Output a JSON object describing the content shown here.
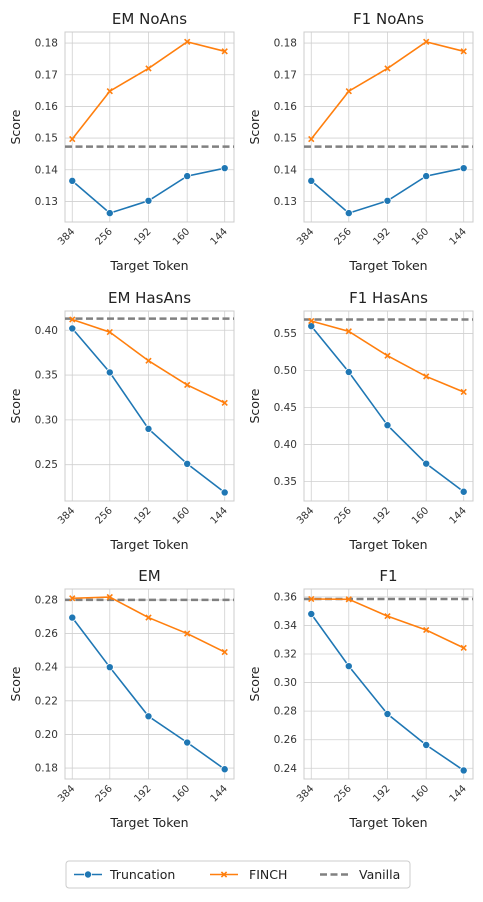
{
  "chart_data": [
    {
      "type": "line",
      "title": "EM NoAns",
      "xlabel": "Target Token",
      "ylabel": "Score",
      "categories": [
        "384",
        "256",
        "192",
        "160",
        "144"
      ],
      "ylim": [
        0.1235,
        0.1835
      ],
      "yticks": [
        "0.13",
        "0.14",
        "0.15",
        "0.16",
        "0.17",
        "0.18"
      ],
      "ytick_values": [
        0.13,
        0.14,
        0.15,
        0.16,
        0.17,
        0.18
      ],
      "series": [
        {
          "name": "Truncation",
          "values": [
            0.1365,
            0.1263,
            0.1302,
            0.138,
            0.1405
          ]
        },
        {
          "name": "FINCH",
          "values": [
            0.1497,
            0.1648,
            0.172,
            0.1804,
            0.1774
          ]
        }
      ],
      "vanilla": 0.1473
    },
    {
      "type": "line",
      "title": "F1 NoAns",
      "xlabel": "Target Token",
      "ylabel": "Score",
      "categories": [
        "384",
        "256",
        "192",
        "160",
        "144"
      ],
      "ylim": [
        0.1235,
        0.1835
      ],
      "yticks": [
        "0.13",
        "0.14",
        "0.15",
        "0.16",
        "0.17",
        "0.18"
      ],
      "ytick_values": [
        0.13,
        0.14,
        0.15,
        0.16,
        0.17,
        0.18
      ],
      "series": [
        {
          "name": "Truncation",
          "values": [
            0.1365,
            0.1263,
            0.1302,
            0.138,
            0.1405
          ]
        },
        {
          "name": "FINCH",
          "values": [
            0.1497,
            0.1648,
            0.172,
            0.1804,
            0.1774
          ]
        }
      ],
      "vanilla": 0.1473
    },
    {
      "type": "line",
      "title": "EM HasAns",
      "xlabel": "Target Token",
      "ylabel": "Score",
      "categories": [
        "384",
        "256",
        "192",
        "160",
        "144"
      ],
      "ylim": [
        0.2095,
        0.4215
      ],
      "yticks": [
        "0.25",
        "0.30",
        "0.35",
        "0.40"
      ],
      "ytick_values": [
        0.25,
        0.3,
        0.35,
        0.4
      ],
      "series": [
        {
          "name": "Truncation",
          "values": [
            0.402,
            0.353,
            0.29,
            0.251,
            0.219
          ]
        },
        {
          "name": "FINCH",
          "values": [
            0.412,
            0.398,
            0.366,
            0.339,
            0.319
          ]
        }
      ],
      "vanilla": 0.413
    },
    {
      "type": "line",
      "title": "F1 HasAns",
      "xlabel": "Target Token",
      "ylabel": "Score",
      "categories": [
        "384",
        "256",
        "192",
        "160",
        "144"
      ],
      "ylim": [
        0.3235,
        0.5805
      ],
      "yticks": [
        "0.35",
        "0.40",
        "0.45",
        "0.50",
        "0.55"
      ],
      "ytick_values": [
        0.35,
        0.4,
        0.45,
        0.5,
        0.55
      ],
      "series": [
        {
          "name": "Truncation",
          "values": [
            0.56,
            0.498,
            0.426,
            0.374,
            0.336
          ]
        },
        {
          "name": "FINCH",
          "values": [
            0.567,
            0.553,
            0.52,
            0.492,
            0.471
          ]
        }
      ],
      "vanilla": 0.569
    },
    {
      "type": "line",
      "title": "EM",
      "xlabel": "Target Token",
      "ylabel": "Score",
      "categories": [
        "384",
        "256",
        "192",
        "160",
        "144"
      ],
      "ylim": [
        0.1735,
        0.2865
      ],
      "yticks": [
        "0.18",
        "0.20",
        "0.22",
        "0.24",
        "0.26",
        "0.28"
      ],
      "ytick_values": [
        0.18,
        0.2,
        0.22,
        0.24,
        0.26,
        0.28
      ],
      "series": [
        {
          "name": "Truncation",
          "values": [
            0.2695,
            0.24,
            0.2108,
            0.1952,
            0.1793
          ]
        },
        {
          "name": "FINCH",
          "values": [
            0.281,
            0.2817,
            0.2695,
            0.26,
            0.249
          ]
        }
      ],
      "vanilla": 0.28
    },
    {
      "type": "line",
      "title": "F1",
      "xlabel": "Target Token",
      "ylabel": "Score",
      "categories": [
        "384",
        "256",
        "192",
        "160",
        "144"
      ],
      "ylim": [
        0.2325,
        0.3655
      ],
      "yticks": [
        "0.24",
        "0.26",
        "0.28",
        "0.30",
        "0.32",
        "0.34",
        "0.36"
      ],
      "ytick_values": [
        0.24,
        0.26,
        0.28,
        0.3,
        0.32,
        0.34,
        0.36
      ],
      "series": [
        {
          "name": "Truncation",
          "values": [
            0.348,
            0.3115,
            0.278,
            0.2563,
            0.2385
          ]
        },
        {
          "name": "FINCH",
          "values": [
            0.3585,
            0.3583,
            0.3465,
            0.3368,
            0.3243
          ]
        }
      ],
      "vanilla": 0.3585
    }
  ],
  "legend": {
    "placement": "bottom-center",
    "items": [
      {
        "label": "Truncation",
        "color": "#1f77b4",
        "marker": "circle",
        "style": "solid"
      },
      {
        "label": "FINCH",
        "color": "#ff7f0e",
        "marker": "x",
        "style": "solid"
      },
      {
        "label": "Vanilla",
        "color": "#808080",
        "marker": "none",
        "style": "dashed"
      }
    ]
  },
  "colors": {
    "truncation": "#1f77b4",
    "finch": "#ff7f0e",
    "vanilla": "#808080",
    "grid": "#d0d0d0",
    "axis": "#cccccc"
  }
}
